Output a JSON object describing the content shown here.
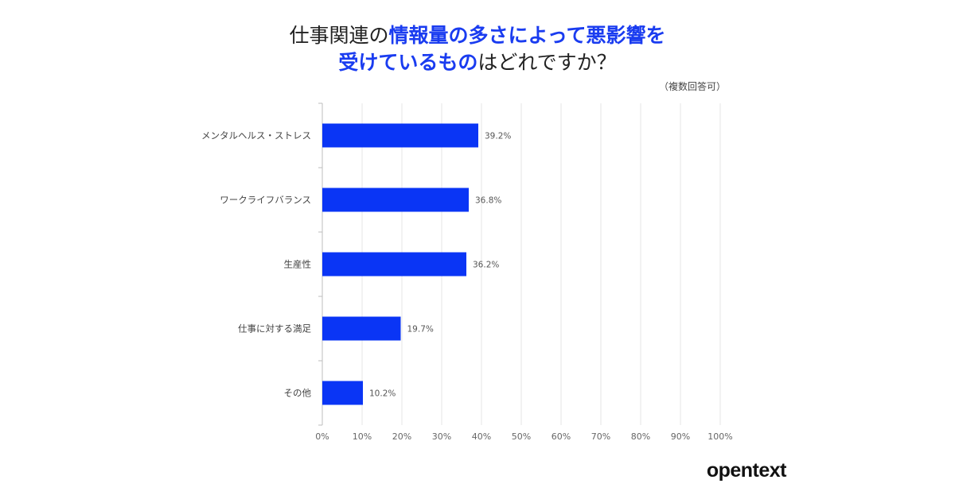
{
  "title": {
    "line1": [
      {
        "text": "仕事関連の",
        "hl": false
      },
      {
        "text": "情報量の多さによって悪影響を",
        "hl": true
      }
    ],
    "line2": [
      {
        "text": "受けているもの",
        "hl": true
      },
      {
        "text": "はどれですか？",
        "hl": false
      }
    ]
  },
  "note": "（複数回答可）",
  "brand": "opentext",
  "colors": {
    "bar": "#0a35f5",
    "highlight": "#1a3cf0",
    "grid": "#e4e4e4"
  },
  "chart_data": {
    "type": "bar",
    "orientation": "horizontal",
    "categories": [
      "メンタルヘルス・ストレス",
      "ワークライフバランス",
      "生産性",
      "仕事に対する満足",
      "その他"
    ],
    "values": [
      39.2,
      36.8,
      36.2,
      19.7,
      10.2
    ],
    "value_labels": [
      "39.2%",
      "36.8%",
      "36.2%",
      "19.7%",
      "10.2%"
    ],
    "xlim": [
      0,
      100
    ],
    "xticks": [
      0,
      10,
      20,
      30,
      40,
      50,
      60,
      70,
      80,
      90,
      100
    ],
    "xtick_labels": [
      "0%",
      "10%",
      "20%",
      "30%",
      "40%",
      "50%",
      "60%",
      "70%",
      "80%",
      "90%",
      "100%"
    ],
    "grid": true,
    "legend": "none"
  }
}
